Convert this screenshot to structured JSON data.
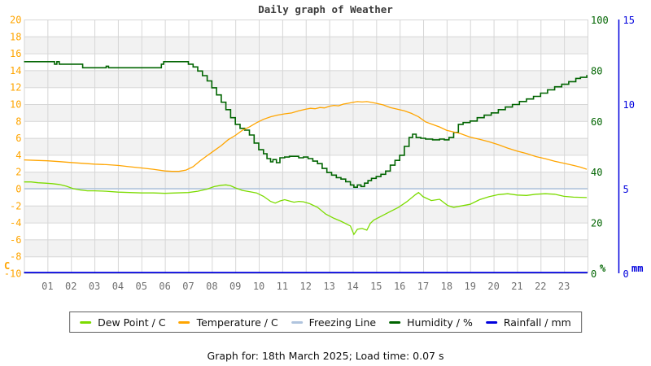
{
  "title": "Daily graph of Weather",
  "footer": "Graph for: 18th March 2025; Load time: 0.07 s",
  "colors": {
    "dew_point": "#7CDB00",
    "temperature": "#FFA500",
    "freezing_line": "#B0C4DE",
    "humidity": "#006400",
    "rainfall": "#0000DD",
    "grid": "#D6D6D6",
    "band": "#F2F2F2",
    "x_labels": "#707070",
    "title_text": "#3C3C3C"
  },
  "chart_data": {
    "type": "line",
    "title": "Daily graph of Weather",
    "x_unit": "hour of day",
    "x_range": [
      0,
      24
    ],
    "x_ticks": [
      "01",
      "02",
      "03",
      "04",
      "05",
      "06",
      "07",
      "08",
      "09",
      "10",
      "11",
      "12",
      "13",
      "14",
      "15",
      "16",
      "17",
      "18",
      "19",
      "20",
      "21",
      "22",
      "23"
    ],
    "grid": true,
    "axes": {
      "temp_c": {
        "side": "left",
        "unit": "C",
        "range": [
          -10,
          20
        ],
        "ticks": [
          20,
          18,
          16,
          14,
          12,
          10,
          8,
          6,
          4,
          2,
          0,
          -2,
          -4,
          -6,
          -8,
          -10
        ],
        "color": "#FFA500"
      },
      "humidity_pct": {
        "side": "right",
        "unit": "%",
        "range": [
          0,
          100
        ],
        "ticks": [
          100,
          80,
          60,
          40,
          20,
          0
        ],
        "color": "#006400"
      },
      "rain_mm": {
        "side": "far-right",
        "unit": "mm",
        "range": [
          0,
          15
        ],
        "ticks": [
          15,
          10,
          5,
          0
        ],
        "color": "#0000DD"
      }
    },
    "series": [
      {
        "name": "Dew Point / C",
        "axis": "temp_c",
        "color": "#7CDB00",
        "style": "line",
        "points": [
          [
            0,
            0.8
          ],
          [
            0.3,
            0.8
          ],
          [
            0.6,
            0.7
          ],
          [
            0.9,
            0.65
          ],
          [
            1.2,
            0.6
          ],
          [
            1.5,
            0.5
          ],
          [
            1.8,
            0.3
          ],
          [
            2.1,
            0.0
          ],
          [
            2.4,
            -0.15
          ],
          [
            2.7,
            -0.25
          ],
          [
            3,
            -0.25
          ],
          [
            3.5,
            -0.3
          ],
          [
            4,
            -0.4
          ],
          [
            4.5,
            -0.45
          ],
          [
            5,
            -0.5
          ],
          [
            5.5,
            -0.5
          ],
          [
            6,
            -0.55
          ],
          [
            6.5,
            -0.5
          ],
          [
            7,
            -0.45
          ],
          [
            7.4,
            -0.3
          ],
          [
            7.8,
            -0.05
          ],
          [
            8.1,
            0.25
          ],
          [
            8.4,
            0.4
          ],
          [
            8.6,
            0.45
          ],
          [
            8.8,
            0.35
          ],
          [
            9,
            0.1
          ],
          [
            9.3,
            -0.2
          ],
          [
            9.6,
            -0.35
          ],
          [
            9.9,
            -0.5
          ],
          [
            10.2,
            -0.9
          ],
          [
            10.5,
            -1.5
          ],
          [
            10.7,
            -1.7
          ],
          [
            10.9,
            -1.45
          ],
          [
            11.1,
            -1.3
          ],
          [
            11.3,
            -1.45
          ],
          [
            11.5,
            -1.6
          ],
          [
            11.7,
            -1.5
          ],
          [
            11.9,
            -1.55
          ],
          [
            12.15,
            -1.75
          ],
          [
            12.5,
            -2.2
          ],
          [
            12.85,
            -3.0
          ],
          [
            13.2,
            -3.5
          ],
          [
            13.5,
            -3.85
          ],
          [
            13.9,
            -4.4
          ],
          [
            14.05,
            -5.4
          ],
          [
            14.2,
            -4.8
          ],
          [
            14.4,
            -4.7
          ],
          [
            14.6,
            -4.9
          ],
          [
            14.75,
            -4.1
          ],
          [
            14.9,
            -3.7
          ],
          [
            15.25,
            -3.2
          ],
          [
            15.6,
            -2.7
          ],
          [
            15.95,
            -2.2
          ],
          [
            16.3,
            -1.55
          ],
          [
            16.65,
            -0.75
          ],
          [
            16.8,
            -0.45
          ],
          [
            17,
            -0.95
          ],
          [
            17.35,
            -1.4
          ],
          [
            17.7,
            -1.25
          ],
          [
            18.05,
            -2.0
          ],
          [
            18.3,
            -2.2
          ],
          [
            18.6,
            -2.05
          ],
          [
            19,
            -1.85
          ],
          [
            19.4,
            -1.3
          ],
          [
            19.8,
            -0.95
          ],
          [
            20.2,
            -0.7
          ],
          [
            20.6,
            -0.6
          ],
          [
            21,
            -0.75
          ],
          [
            21.4,
            -0.8
          ],
          [
            21.8,
            -0.65
          ],
          [
            22.2,
            -0.6
          ],
          [
            22.6,
            -0.65
          ],
          [
            23,
            -0.9
          ],
          [
            23.4,
            -1.0
          ],
          [
            23.97,
            -1.05
          ]
        ]
      },
      {
        "name": "Temperature / C",
        "axis": "temp_c",
        "color": "#FFA500",
        "style": "line",
        "points": [
          [
            0,
            3.4
          ],
          [
            0.5,
            3.35
          ],
          [
            1,
            3.3
          ],
          [
            1.5,
            3.2
          ],
          [
            2,
            3.1
          ],
          [
            2.5,
            3.0
          ],
          [
            3,
            2.9
          ],
          [
            3.5,
            2.85
          ],
          [
            4,
            2.75
          ],
          [
            4.5,
            2.6
          ],
          [
            5,
            2.45
          ],
          [
            5.5,
            2.3
          ],
          [
            6,
            2.1
          ],
          [
            6.3,
            2.05
          ],
          [
            6.6,
            2.05
          ],
          [
            6.9,
            2.2
          ],
          [
            7.2,
            2.6
          ],
          [
            7.5,
            3.3
          ],
          [
            7.8,
            3.9
          ],
          [
            8.1,
            4.5
          ],
          [
            8.4,
            5.1
          ],
          [
            8.7,
            5.8
          ],
          [
            9,
            6.3
          ],
          [
            9.3,
            6.9
          ],
          [
            9.6,
            7.3
          ],
          [
            9.9,
            7.8
          ],
          [
            10.2,
            8.2
          ],
          [
            10.5,
            8.5
          ],
          [
            10.8,
            8.7
          ],
          [
            11.1,
            8.85
          ],
          [
            11.4,
            8.95
          ],
          [
            11.7,
            9.2
          ],
          [
            12,
            9.4
          ],
          [
            12.2,
            9.5
          ],
          [
            12.4,
            9.45
          ],
          [
            12.6,
            9.6
          ],
          [
            12.8,
            9.55
          ],
          [
            13,
            9.75
          ],
          [
            13.2,
            9.85
          ],
          [
            13.4,
            9.8
          ],
          [
            13.6,
            10.0
          ],
          [
            13.8,
            10.1
          ],
          [
            14,
            10.2
          ],
          [
            14.2,
            10.3
          ],
          [
            14.4,
            10.25
          ],
          [
            14.6,
            10.3
          ],
          [
            14.8,
            10.2
          ],
          [
            15,
            10.1
          ],
          [
            15.3,
            9.9
          ],
          [
            15.6,
            9.6
          ],
          [
            15.9,
            9.4
          ],
          [
            16.2,
            9.2
          ],
          [
            16.5,
            8.9
          ],
          [
            16.8,
            8.5
          ],
          [
            17.1,
            7.9
          ],
          [
            17.4,
            7.6
          ],
          [
            17.7,
            7.3
          ],
          [
            18,
            6.9
          ],
          [
            18.3,
            6.7
          ],
          [
            18.6,
            6.5
          ],
          [
            19,
            6.1
          ],
          [
            19.4,
            5.85
          ],
          [
            19.8,
            5.55
          ],
          [
            20.2,
            5.2
          ],
          [
            20.6,
            4.8
          ],
          [
            21,
            4.45
          ],
          [
            21.4,
            4.15
          ],
          [
            21.8,
            3.8
          ],
          [
            22.2,
            3.55
          ],
          [
            22.6,
            3.25
          ],
          [
            23,
            3.0
          ],
          [
            23.4,
            2.75
          ],
          [
            23.7,
            2.55
          ],
          [
            23.97,
            2.3
          ]
        ]
      },
      {
        "name": "Freezing Line",
        "axis": "temp_c",
        "color": "#B0C4DE",
        "style": "line",
        "points": [
          [
            0,
            0
          ],
          [
            24,
            0
          ]
        ]
      },
      {
        "name": "Humidity / %",
        "axis": "humidity_pct",
        "color": "#006400",
        "style": "step",
        "points": [
          [
            0,
            83.4
          ],
          [
            0.6,
            83.4
          ],
          [
            1.2,
            83.4
          ],
          [
            1.3,
            82.4
          ],
          [
            1.4,
            83.4
          ],
          [
            1.5,
            82.4
          ],
          [
            1.6,
            82.4
          ],
          [
            2,
            82.4
          ],
          [
            2.5,
            81.0
          ],
          [
            3,
            81.0
          ],
          [
            3.5,
            81.6
          ],
          [
            3.6,
            81.0
          ],
          [
            4,
            81.0
          ],
          [
            4.5,
            81.0
          ],
          [
            5,
            81.0
          ],
          [
            5.5,
            81.0
          ],
          [
            5.85,
            82.4
          ],
          [
            5.95,
            83.4
          ],
          [
            6.4,
            83.4
          ],
          [
            6.85,
            83.4
          ],
          [
            7,
            82.4
          ],
          [
            7.2,
            81.3
          ],
          [
            7.4,
            79.7
          ],
          [
            7.6,
            77.9
          ],
          [
            7.8,
            75.8
          ],
          [
            8,
            73.1
          ],
          [
            8.2,
            70.3
          ],
          [
            8.4,
            67.4
          ],
          [
            8.6,
            64.5
          ],
          [
            8.8,
            61.3
          ],
          [
            9,
            58.7
          ],
          [
            9.2,
            57.1
          ],
          [
            9.4,
            56.4
          ],
          [
            9.6,
            54.5
          ],
          [
            9.8,
            51.3
          ],
          [
            10,
            48.7
          ],
          [
            10.2,
            47.1
          ],
          [
            10.35,
            45.2
          ],
          [
            10.5,
            43.9
          ],
          [
            10.6,
            44.8
          ],
          [
            10.75,
            43.6
          ],
          [
            10.9,
            45.5
          ],
          [
            11.1,
            45.8
          ],
          [
            11.3,
            46.1
          ],
          [
            11.5,
            46.1
          ],
          [
            11.7,
            45.5
          ],
          [
            11.9,
            45.8
          ],
          [
            12.1,
            45.2
          ],
          [
            12.3,
            44.2
          ],
          [
            12.5,
            43.2
          ],
          [
            12.7,
            41.3
          ],
          [
            12.9,
            39.7
          ],
          [
            13.1,
            38.7
          ],
          [
            13.3,
            37.7
          ],
          [
            13.5,
            37.1
          ],
          [
            13.7,
            36.1
          ],
          [
            13.9,
            34.8
          ],
          [
            14.05,
            33.9
          ],
          [
            14.2,
            34.8
          ],
          [
            14.35,
            34.2
          ],
          [
            14.5,
            35.5
          ],
          [
            14.65,
            36.5
          ],
          [
            14.8,
            37.4
          ],
          [
            15,
            38.1
          ],
          [
            15.2,
            39.0
          ],
          [
            15.4,
            40.3
          ],
          [
            15.6,
            42.6
          ],
          [
            15.8,
            44.5
          ],
          [
            16,
            46.5
          ],
          [
            16.2,
            50.0
          ],
          [
            16.4,
            53.5
          ],
          [
            16.55,
            54.8
          ],
          [
            16.7,
            53.5
          ],
          [
            16.9,
            53.2
          ],
          [
            17.1,
            52.9
          ],
          [
            17.4,
            52.6
          ],
          [
            17.7,
            52.9
          ],
          [
            17.9,
            52.6
          ],
          [
            18.1,
            53.5
          ],
          [
            18.3,
            55.5
          ],
          [
            18.5,
            58.7
          ],
          [
            18.7,
            59.4
          ],
          [
            19,
            60.0
          ],
          [
            19.3,
            61.3
          ],
          [
            19.6,
            62.3
          ],
          [
            19.9,
            63.2
          ],
          [
            20.2,
            64.5
          ],
          [
            20.5,
            65.5
          ],
          [
            20.8,
            66.5
          ],
          [
            21.1,
            67.7
          ],
          [
            21.4,
            68.7
          ],
          [
            21.7,
            69.7
          ],
          [
            22,
            71.0
          ],
          [
            22.3,
            72.3
          ],
          [
            22.6,
            73.5
          ],
          [
            22.9,
            74.5
          ],
          [
            23.2,
            75.5
          ],
          [
            23.5,
            76.8
          ],
          [
            23.7,
            77.2
          ],
          [
            23.97,
            78.1
          ]
        ]
      },
      {
        "name": "Rainfall / mm",
        "axis": "rain_mm",
        "color": "#0000DD",
        "style": "line",
        "points": [
          [
            0,
            0
          ],
          [
            24,
            0
          ]
        ]
      }
    ]
  },
  "legend": {
    "items": [
      {
        "label": "Dew Point / C",
        "color": "#7CDB00"
      },
      {
        "label": "Temperature / C",
        "color": "#FFA500"
      },
      {
        "label": "Freezing Line",
        "color": "#B0C4DE"
      },
      {
        "label": "Humidity / %",
        "color": "#006400"
      },
      {
        "label": "Rainfall / mm",
        "color": "#0000DD"
      }
    ]
  }
}
